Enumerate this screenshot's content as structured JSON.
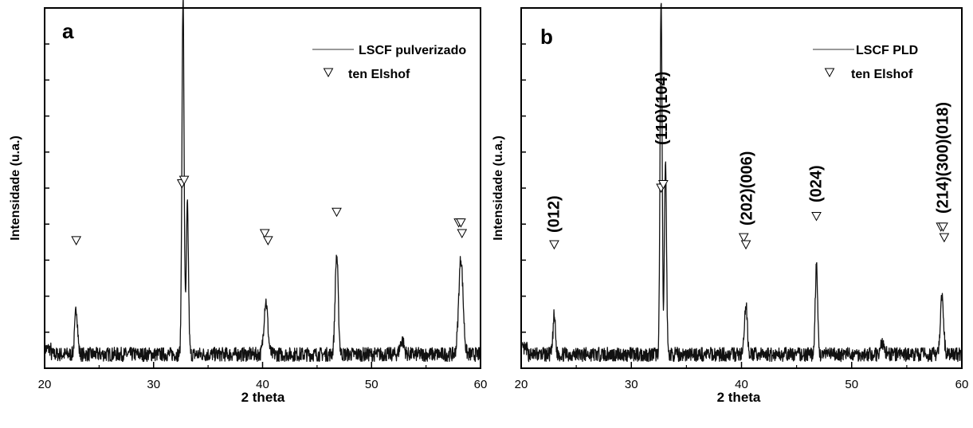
{
  "colors": {
    "trace": "#111111",
    "axis": "#000000",
    "legend_line": "#9a9a9a",
    "background": "#ffffff"
  },
  "chart_data": [
    {
      "type": "line",
      "panel_label": "a",
      "xlabel": "2 theta",
      "ylabel": "Intensidade (u.a.)",
      "xlim": [
        20,
        60
      ],
      "x_ticks": [
        "20",
        "30",
        "40",
        "50",
        "60"
      ],
      "y_tick_count": 9,
      "y_tick_labels": [],
      "legend": {
        "placement": "top-right",
        "line_entry": "LSCF pulverizado",
        "marker_entry": "ten Elshof"
      },
      "series": [
        {
          "name": "LSCF pulverizado",
          "kind": "xrd-trace",
          "baseline": 3,
          "noise": 2,
          "peaks": [
            {
              "x": 22.9,
              "height": 13,
              "width": 0.18
            },
            {
              "x": 32.7,
              "height": 100,
              "width": 0.14
            },
            {
              "x": 33.1,
              "height": 42,
              "width": 0.14
            },
            {
              "x": 40.3,
              "height": 15,
              "width": 0.25
            },
            {
              "x": 46.8,
              "height": 28,
              "width": 0.2
            },
            {
              "x": 52.8,
              "height": 4,
              "width": 0.25
            },
            {
              "x": 58.2,
              "height": 27,
              "width": 0.28
            }
          ]
        },
        {
          "name": "ten Elshof",
          "kind": "markers",
          "points": [
            {
              "x": 22.9,
              "y": 35
            },
            {
              "x": 32.6,
              "y": 51
            },
            {
              "x": 32.8,
              "y": 52
            },
            {
              "x": 40.2,
              "y": 37
            },
            {
              "x": 40.5,
              "y": 35
            },
            {
              "x": 46.8,
              "y": 43
            },
            {
              "x": 58.0,
              "y": 40
            },
            {
              "x": 58.2,
              "y": 40
            },
            {
              "x": 58.3,
              "y": 37
            }
          ]
        }
      ]
    },
    {
      "type": "line",
      "panel_label": "b",
      "xlabel": "2 theta",
      "ylabel": "Intensidade (u.a.)",
      "xlim": [
        20,
        60
      ],
      "x_ticks": [
        "20",
        "30",
        "40",
        "50",
        "60"
      ],
      "y_tick_count": 9,
      "y_tick_labels": [],
      "legend": {
        "placement": "top-right",
        "line_entry": "LSCF PLD",
        "marker_entry": "ten Elshof"
      },
      "annotations": [
        {
          "text": "(012)",
          "x": 23.0
        },
        {
          "text": "(110)(104)",
          "x": 32.8
        },
        {
          "text": "(202)(006)",
          "x": 40.5
        },
        {
          "text": "(024)",
          "x": 46.8
        },
        {
          "text": "(214)(300)(018)",
          "x": 58.3
        }
      ],
      "series": [
        {
          "name": "LSCF PLD",
          "kind": "xrd-trace",
          "baseline": 3,
          "noise": 2,
          "peaks": [
            {
              "x": 23.0,
              "height": 11,
              "width": 0.15
            },
            {
              "x": 32.7,
              "height": 100,
              "width": 0.13
            },
            {
              "x": 33.1,
              "height": 55,
              "width": 0.13
            },
            {
              "x": 40.4,
              "height": 14,
              "width": 0.18
            },
            {
              "x": 46.8,
              "height": 25,
              "width": 0.15
            },
            {
              "x": 52.8,
              "height": 3,
              "width": 0.25
            },
            {
              "x": 58.2,
              "height": 16,
              "width": 0.2
            }
          ]
        },
        {
          "name": "ten Elshof",
          "kind": "markers",
          "points": [
            {
              "x": 23.0,
              "y": 34
            },
            {
              "x": 32.7,
              "y": 50
            },
            {
              "x": 32.9,
              "y": 51
            },
            {
              "x": 40.2,
              "y": 36
            },
            {
              "x": 40.4,
              "y": 34
            },
            {
              "x": 46.8,
              "y": 42
            },
            {
              "x": 58.1,
              "y": 39
            },
            {
              "x": 58.3,
              "y": 39
            },
            {
              "x": 58.4,
              "y": 36
            }
          ]
        }
      ]
    }
  ]
}
